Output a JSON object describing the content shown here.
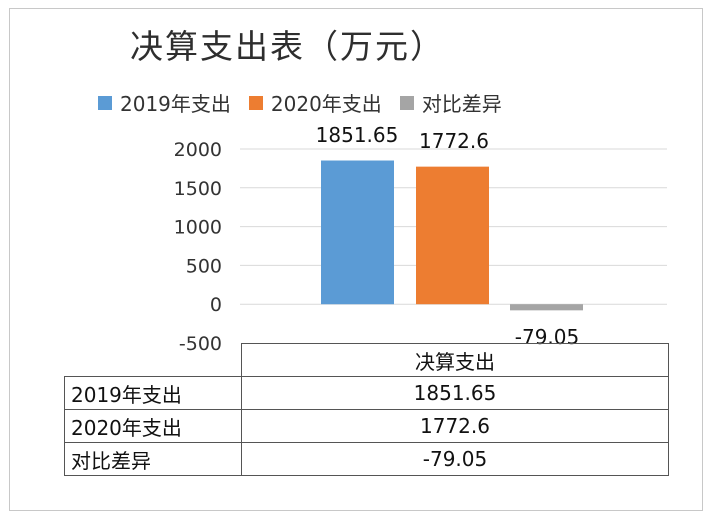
{
  "chart_data": {
    "type": "bar",
    "title": "决算支出表（万元）",
    "categories": [
      "决算支出"
    ],
    "series": [
      {
        "name": "2019年支出",
        "values": [
          1851.65
        ],
        "color": "#5b9bd5"
      },
      {
        "name": "2020年支出",
        "values": [
          1772.6
        ],
        "color": "#ed7d31"
      },
      {
        "name": "对比差异",
        "values": [
          -79.05
        ],
        "color": "#a5a5a5"
      }
    ],
    "ylim": [
      -500,
      2000
    ],
    "yticks": [
      "2000",
      "1500",
      "1000",
      "500",
      "0",
      "-500"
    ],
    "data_labels": [
      "1851.65",
      "1772.6",
      "-79.05"
    ],
    "legend_position": "top",
    "grid": true,
    "gridline_color": "#d9d9d9",
    "table": {
      "header": "决算支出",
      "rows": [
        {
          "label": "2019年支出",
          "value": "1851.65"
        },
        {
          "label": "2020年支出",
          "value": "1772.6"
        },
        {
          "label": "对比差异",
          "value": "-79.05"
        }
      ]
    }
  }
}
